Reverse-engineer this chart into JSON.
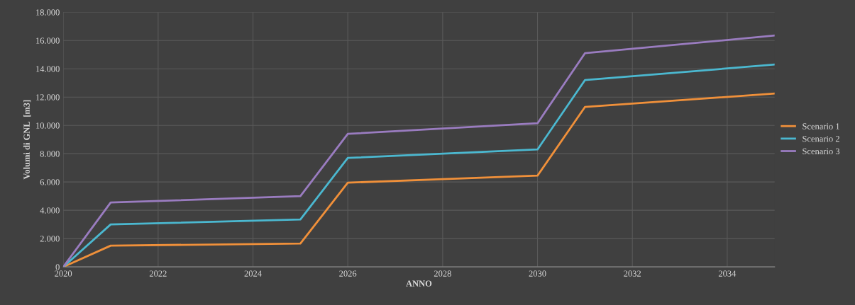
{
  "chart_data": {
    "type": "line",
    "xlabel": "ANNO",
    "ylabel": "Volumi di GNL  [m3]",
    "x": [
      2020,
      2021,
      2025,
      2026,
      2030,
      2031,
      2035
    ],
    "series": [
      {
        "name": "Scenario 1",
        "color": "#f0903a",
        "values": [
          0,
          1500,
          1650,
          5950,
          6450,
          11300,
          12250
        ]
      },
      {
        "name": "Scenario 2",
        "color": "#4bb8d0",
        "values": [
          0,
          3000,
          3350,
          7700,
          8300,
          13200,
          14300
        ]
      },
      {
        "name": "Scenario 3",
        "color": "#9a7cc0",
        "values": [
          0,
          4550,
          5000,
          9400,
          10150,
          15100,
          16350
        ]
      }
    ],
    "xlim": [
      2020,
      2035
    ],
    "xticks": [
      2020,
      2022,
      2024,
      2026,
      2028,
      2030,
      2032,
      2034
    ],
    "ylim": [
      0,
      18000
    ],
    "yticks": [
      {
        "value": 0,
        "label": "0"
      },
      {
        "value": 2000,
        "label": "2.000"
      },
      {
        "value": 4000,
        "label": "4.000"
      },
      {
        "value": 6000,
        "label": "6.000"
      },
      {
        "value": 8000,
        "label": "8.000"
      },
      {
        "value": 10000,
        "label": "10.000"
      },
      {
        "value": 12000,
        "label": "12.000"
      },
      {
        "value": 14000,
        "label": "14.000"
      },
      {
        "value": 16000,
        "label": "16.000"
      },
      {
        "value": 18000,
        "label": "18.000"
      }
    ],
    "grid": true,
    "legend": "right",
    "marker": "none",
    "line_style": "solid"
  }
}
